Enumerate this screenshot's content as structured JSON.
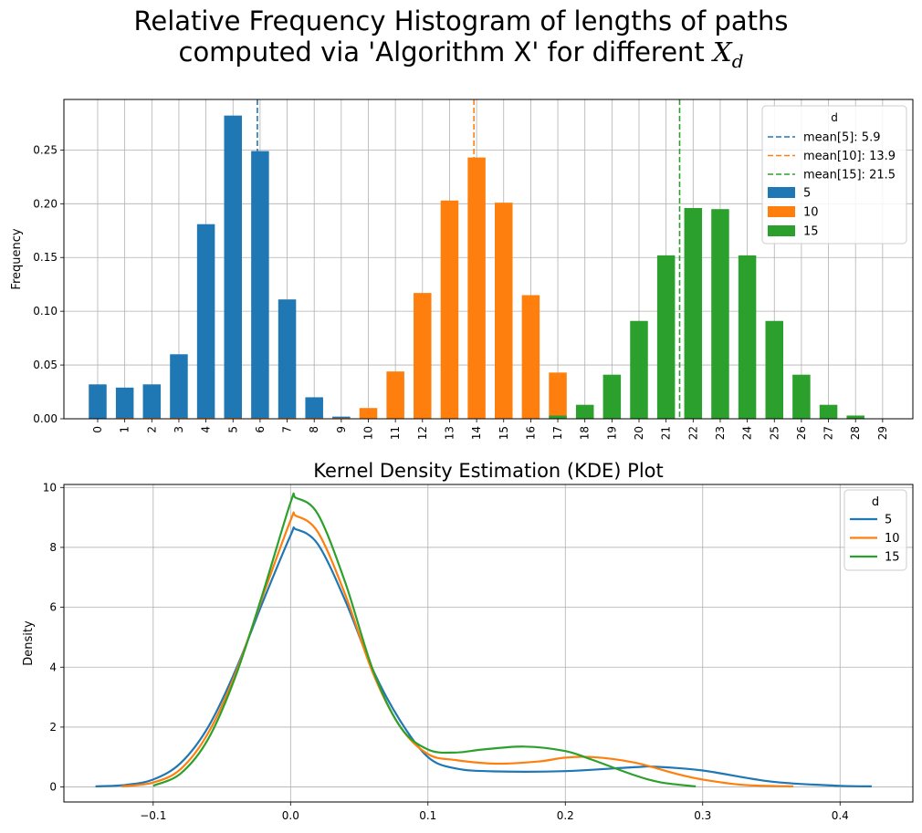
{
  "figure": {
    "suptitle_line1": "Relative Frequency Histogram of lengths of paths",
    "suptitle_line2": "computed via 'Algorithm X' for different ",
    "suptitle_math": "X",
    "suptitle_math_sub": "d"
  },
  "chart_data": [
    {
      "type": "bar",
      "title": "",
      "xlabel": "",
      "ylabel": "Frequency",
      "ylim": [
        0,
        0.297
      ],
      "yticks": [
        0.0,
        0.05,
        0.1,
        0.15,
        0.2,
        0.25
      ],
      "ytick_labels": [
        "0.00",
        "0.05",
        "0.10",
        "0.15",
        "0.20",
        "0.25"
      ],
      "categories": [
        "0",
        "1",
        "2",
        "3",
        "4",
        "5",
        "6",
        "7",
        "8",
        "9",
        "10",
        "11",
        "12",
        "13",
        "14",
        "15",
        "16",
        "17",
        "18",
        "19",
        "20",
        "21",
        "22",
        "23",
        "24",
        "25",
        "26",
        "27",
        "28",
        "29"
      ],
      "grid": true,
      "legend_title": "d",
      "legend_position": "top-right",
      "series": [
        {
          "name": "5",
          "color": "#1f77b4",
          "values": [
            0.032,
            0.029,
            0.032,
            0.06,
            0.181,
            0.282,
            0.249,
            0.111,
            0.02,
            0.002,
            0,
            0,
            0,
            0,
            0,
            0,
            0,
            0,
            0,
            0,
            0,
            0,
            0,
            0,
            0,
            0,
            0,
            0,
            0,
            0
          ]
        },
        {
          "name": "10",
          "color": "#ff7f0e",
          "values": [
            0,
            0.0008,
            0.0008,
            0.0008,
            0.0008,
            0.0008,
            0.0008,
            0.0008,
            0.0008,
            0.0008,
            0.01,
            0.044,
            0.117,
            0.203,
            0.243,
            0.201,
            0.115,
            0.043,
            0.009,
            0.0008,
            0,
            0,
            0,
            0,
            0,
            0,
            0,
            0,
            0,
            0
          ]
        },
        {
          "name": "15",
          "color": "#2ca02c",
          "values": [
            0,
            0,
            0,
            0,
            0,
            0,
            0,
            0,
            0,
            0,
            0,
            0,
            0,
            0,
            0,
            0,
            0,
            0.003,
            0.013,
            0.041,
            0.091,
            0.152,
            0.196,
            0.195,
            0.152,
            0.091,
            0.041,
            0.013,
            0.003,
            0
          ]
        }
      ],
      "mean_lines": [
        {
          "label": "mean[5]: 5.9",
          "value": 5.9,
          "color": "#1f77b4"
        },
        {
          "label": "mean[10]: 13.9",
          "value": 13.9,
          "color": "#ff7f0e"
        },
        {
          "label": "mean[15]: 21.5",
          "value": 21.5,
          "color": "#2ca02c"
        }
      ]
    },
    {
      "type": "line",
      "title": "Kernel Density Estimation (KDE) Plot",
      "xlabel": "",
      "ylabel": "Density",
      "xlim": [
        -0.165,
        0.453
      ],
      "ylim": [
        -0.5,
        10.1
      ],
      "xticks": [
        -0.1,
        0.0,
        0.1,
        0.2,
        0.3,
        0.4
      ],
      "xtick_labels": [
        "−0.1",
        "0.0",
        "0.1",
        "0.2",
        "0.3",
        "0.4"
      ],
      "yticks": [
        0,
        2,
        4,
        6,
        8,
        10
      ],
      "ytick_labels": [
        "0",
        "2",
        "4",
        "6",
        "8",
        "10"
      ],
      "grid": true,
      "legend_title": "d",
      "legend_position": "top-right",
      "series": [
        {
          "name": "5",
          "color": "#1f77b4",
          "x": [
            -0.142,
            -0.12,
            -0.1,
            -0.08,
            -0.06,
            -0.04,
            -0.02,
            0.0,
            0.004,
            0.02,
            0.04,
            0.06,
            0.08,
            0.1,
            0.12,
            0.15,
            0.2,
            0.25,
            0.265,
            0.3,
            0.35,
            0.4,
            0.423
          ],
          "y": [
            0.02,
            0.07,
            0.25,
            0.8,
            2.0,
            3.9,
            6.2,
            8.4,
            8.6,
            8.1,
            6.2,
            3.9,
            2.2,
            1.0,
            0.62,
            0.52,
            0.53,
            0.66,
            0.68,
            0.55,
            0.18,
            0.04,
            0.02
          ]
        },
        {
          "name": "10",
          "color": "#ff7f0e",
          "x": [
            -0.123,
            -0.1,
            -0.08,
            -0.06,
            -0.04,
            -0.02,
            0.0,
            0.004,
            0.02,
            0.04,
            0.06,
            0.08,
            0.1,
            0.12,
            0.15,
            0.18,
            0.2,
            0.22,
            0.25,
            0.28,
            0.3,
            0.33,
            0.366
          ],
          "y": [
            0.02,
            0.15,
            0.6,
            1.8,
            3.8,
            6.4,
            8.9,
            9.05,
            8.5,
            6.4,
            3.8,
            2.0,
            1.1,
            0.9,
            0.78,
            0.85,
            0.98,
            1.0,
            0.82,
            0.45,
            0.25,
            0.07,
            0.02
          ]
        },
        {
          "name": "15",
          "color": "#2ca02c",
          "x": [
            -0.1,
            -0.08,
            -0.06,
            -0.04,
            -0.02,
            0.0,
            0.004,
            0.02,
            0.04,
            0.06,
            0.08,
            0.1,
            0.12,
            0.14,
            0.17,
            0.2,
            0.22,
            0.25,
            0.27,
            0.295
          ],
          "y": [
            0.04,
            0.45,
            1.6,
            3.7,
            6.5,
            9.5,
            9.65,
            9.1,
            6.8,
            3.9,
            2.0,
            1.25,
            1.15,
            1.25,
            1.35,
            1.2,
            0.9,
            0.4,
            0.15,
            0.02
          ]
        }
      ]
    }
  ]
}
